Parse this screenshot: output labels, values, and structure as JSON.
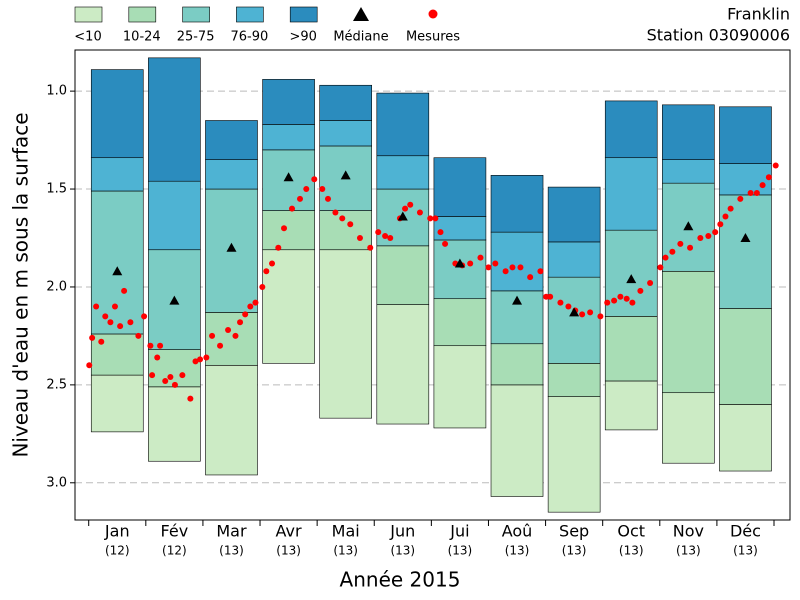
{
  "chart_data": {
    "type": "percentile-box",
    "title": "Franklin",
    "subtitle": "Station 03090006",
    "x_label": "Année 2015",
    "y_label": "Niveau d'eau en m sous la surface",
    "categories": [
      "Jan",
      "Fév",
      "Mar",
      "Avr",
      "Mai",
      "Jun",
      "Jui",
      "Aoû",
      "Sep",
      "Oct",
      "Nov",
      "Déc"
    ],
    "n_labels": [
      "(12)",
      "(12)",
      "(13)",
      "(13)",
      "(13)",
      "(13)",
      "(13)",
      "(13)",
      "(13)",
      "(13)",
      "(13)",
      "(13)"
    ],
    "classes": [
      {
        "name": "<10",
        "color": "#ccebc5"
      },
      {
        "name": "10-24",
        "color": "#a8ddb5"
      },
      {
        "name": "25-75",
        "color": "#7bccc4"
      },
      {
        "name": "76-90",
        "color": "#4eb3d3"
      },
      {
        "name": ">90",
        "color": "#2b8cbe"
      }
    ],
    "levels": [
      [
        2.74,
        2.45,
        2.24,
        1.51,
        1.34,
        0.89
      ],
      [
        2.89,
        2.51,
        2.32,
        1.81,
        1.46,
        0.83
      ],
      [
        2.96,
        2.4,
        2.13,
        1.5,
        1.35,
        1.15
      ],
      [
        2.39,
        1.81,
        1.61,
        1.3,
        1.17,
        0.94
      ],
      [
        2.67,
        1.81,
        1.61,
        1.28,
        1.15,
        0.97
      ],
      [
        2.7,
        2.09,
        1.79,
        1.5,
        1.33,
        1.01
      ],
      [
        2.72,
        2.3,
        2.06,
        1.76,
        1.64,
        1.34
      ],
      [
        3.07,
        2.5,
        2.29,
        2.02,
        1.72,
        1.43
      ],
      [
        3.15,
        2.56,
        2.39,
        1.95,
        1.77,
        1.49
      ],
      [
        2.73,
        2.48,
        2.15,
        1.71,
        1.34,
        1.05
      ],
      [
        2.9,
        2.54,
        1.92,
        1.47,
        1.35,
        1.07
      ],
      [
        2.94,
        2.6,
        2.11,
        1.53,
        1.37,
        1.08
      ]
    ],
    "median": {
      "name": "Médiane",
      "color": "#000000",
      "values": [
        1.92,
        2.07,
        1.8,
        1.44,
        1.43,
        1.64,
        1.88,
        2.07,
        2.13,
        1.96,
        1.69,
        1.75
      ]
    },
    "measurements": {
      "name": "Mesures",
      "color": "#ff0000",
      "x": [
        0.01,
        0.06,
        0.13,
        0.22,
        0.29,
        0.38,
        0.46,
        0.55,
        0.62,
        0.73,
        0.87,
        0.97,
        1.08,
        1.11,
        1.2,
        1.25,
        1.34,
        1.43,
        1.51,
        1.64,
        1.78,
        1.87,
        1.95,
        2.06,
        2.16,
        2.3,
        2.44,
        2.57,
        2.65,
        2.74,
        2.83,
        2.92,
        3.04,
        3.11,
        3.21,
        3.32,
        3.42,
        3.56,
        3.7,
        3.81,
        3.95,
        4.09,
        4.19,
        4.32,
        4.44,
        4.58,
        4.75,
        4.93,
        5.07,
        5.19,
        5.28,
        5.45,
        5.54,
        5.63,
        5.8,
        5.98,
        6.07,
        6.16,
        6.24,
        6.42,
        6.54,
        6.68,
        6.86,
        7.0,
        7.12,
        7.3,
        7.42,
        7.56,
        7.73,
        7.91,
        8.01,
        8.08,
        8.26,
        8.4,
        8.52,
        8.64,
        8.78,
        8.96,
        9.08,
        9.2,
        9.31,
        9.42,
        9.52,
        9.66,
        9.83,
        10.01,
        10.1,
        10.22,
        10.36,
        10.53,
        10.71,
        10.85,
        10.97,
        11.06,
        11.15,
        11.24,
        11.41,
        11.59,
        11.7,
        11.8,
        11.91,
        12.03
      ],
      "values": [
        2.4,
        2.26,
        2.1,
        2.28,
        2.15,
        2.18,
        2.1,
        2.2,
        2.02,
        2.18,
        2.25,
        2.15,
        2.3,
        2.45,
        2.36,
        2.3,
        2.48,
        2.46,
        2.5,
        2.45,
        2.57,
        2.38,
        2.37,
        2.36,
        2.25,
        2.3,
        2.22,
        2.25,
        2.18,
        2.14,
        2.1,
        2.08,
        2.0,
        1.92,
        1.88,
        1.8,
        1.7,
        1.6,
        1.55,
        1.5,
        1.45,
        1.5,
        1.55,
        1.62,
        1.65,
        1.68,
        1.75,
        1.8,
        1.72,
        1.74,
        1.75,
        1.65,
        1.6,
        1.58,
        1.62,
        1.65,
        1.65,
        1.72,
        1.78,
        1.88,
        1.89,
        1.88,
        1.85,
        1.9,
        1.88,
        1.92,
        1.9,
        1.9,
        1.95,
        1.92,
        2.05,
        2.05,
        2.08,
        2.1,
        2.12,
        2.14,
        2.13,
        2.15,
        2.08,
        2.07,
        2.05,
        2.06,
        2.08,
        2.02,
        1.98,
        1.9,
        1.85,
        1.82,
        1.78,
        1.8,
        1.75,
        1.74,
        1.72,
        1.68,
        1.64,
        1.6,
        1.55,
        1.52,
        1.52,
        1.48,
        1.44,
        1.38
      ]
    },
    "xlim": [
      -0.24,
      12.28
    ],
    "ylim": [
      0.79,
      3.19
    ],
    "y_inverted": true,
    "yticks": [
      {
        "value": 1,
        "label": "1.0"
      },
      1.5,
      {
        "value": 2,
        "label": "2.0"
      },
      2.5,
      {
        "value": 3,
        "label": "3.0"
      }
    ],
    "grid": true
  }
}
